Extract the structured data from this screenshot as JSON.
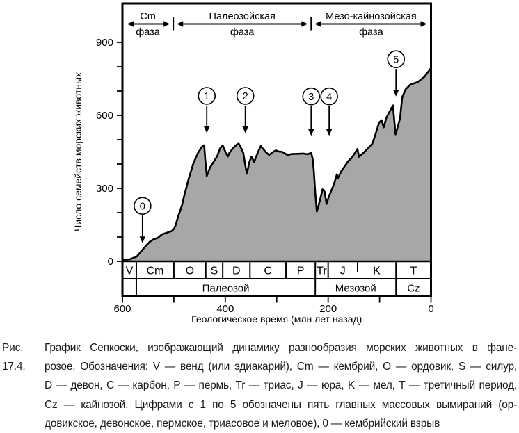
{
  "figure": {
    "caption_label": "Рис. 17.4.",
    "caption_lines": [
      "График Сепкоски, изображающий динамику разнообразия морских животных в фане-",
      "розое. Обозначения: V — венд (или эдиакарий), Cm — кембрий, O — ордовик, S — силур,",
      "D — девон, C — карбон, P — пермь, Tr — триас, J — юра, K — мел, T — третичный период,",
      "Cz — кайнозой. Цифрами с 1 по 5 обозначены пять главных массовых вымираний (ор-",
      "довикское, девонское, пермское, триасовое и меловое), 0 — кембрийский взрыв"
    ]
  },
  "chart_data": {
    "type": "area",
    "title": "",
    "xlabel": "Геологическое время (млн лет назад)",
    "ylabel": "Число семейств морских животных",
    "x_axis": {
      "max": 600,
      "min": 0,
      "reversed": true,
      "ticks": [
        600,
        500,
        400,
        300,
        200,
        100,
        0
      ],
      "labeled_ticks": [
        600,
        400,
        200,
        0
      ]
    },
    "y_axis": {
      "min": 0,
      "max": 900,
      "tick_step": 100,
      "labeled_ticks": [
        0,
        300,
        600,
        900
      ]
    },
    "grid": false,
    "fill_color": "#a7a7a7",
    "line_color": "#000000",
    "series": [
      {
        "name": "Число семейств морских животных",
        "x_unit": "млн лет назад",
        "points": [
          [
            600,
            5
          ],
          [
            585,
            9
          ],
          [
            572,
            20
          ],
          [
            564,
            40
          ],
          [
            554,
            65
          ],
          [
            547,
            80
          ],
          [
            539,
            91
          ],
          [
            531,
            97
          ],
          [
            523,
            111
          ],
          [
            513,
            118
          ],
          [
            504,
            125
          ],
          [
            500,
            133
          ],
          [
            497,
            146
          ],
          [
            491,
            189
          ],
          [
            484,
            231
          ],
          [
            480,
            269
          ],
          [
            475,
            308
          ],
          [
            471,
            341
          ],
          [
            466,
            374
          ],
          [
            462,
            403
          ],
          [
            457,
            427
          ],
          [
            453,
            446
          ],
          [
            446,
            469
          ],
          [
            441,
            477
          ],
          [
            439,
            420
          ],
          [
            436,
            351
          ],
          [
            430,
            384
          ],
          [
            423,
            408
          ],
          [
            416,
            431
          ],
          [
            410,
            465
          ],
          [
            405,
            477
          ],
          [
            399,
            446
          ],
          [
            395,
            431
          ],
          [
            392,
            446
          ],
          [
            385,
            465
          ],
          [
            378,
            479
          ],
          [
            374,
            484
          ],
          [
            369,
            465
          ],
          [
            365,
            446
          ],
          [
            361,
            393
          ],
          [
            358,
            360
          ],
          [
            353,
            410
          ],
          [
            349,
            431
          ],
          [
            344,
            408
          ],
          [
            337,
            446
          ],
          [
            331,
            474
          ],
          [
            322,
            451
          ],
          [
            315,
            437
          ],
          [
            308,
            448
          ],
          [
            302,
            456
          ],
          [
            295,
            451
          ],
          [
            290,
            451
          ],
          [
            283,
            442
          ],
          [
            279,
            437
          ],
          [
            272,
            441
          ],
          [
            260,
            442
          ],
          [
            248,
            443
          ],
          [
            240,
            440
          ],
          [
            233,
            446
          ],
          [
            230,
            420
          ],
          [
            228,
            375
          ],
          [
            225,
            280
          ],
          [
            222,
            205
          ],
          [
            218,
            235
          ],
          [
            214,
            268
          ],
          [
            211,
            296
          ],
          [
            207,
            287
          ],
          [
            203,
            236
          ],
          [
            198,
            270
          ],
          [
            192,
            300
          ],
          [
            187,
            328
          ],
          [
            183,
            358
          ],
          [
            181,
            342
          ],
          [
            175,
            368
          ],
          [
            168,
            390
          ],
          [
            161,
            412
          ],
          [
            154,
            426
          ],
          [
            143,
            462
          ],
          [
            140,
            430
          ],
          [
            131,
            447
          ],
          [
            122,
            466
          ],
          [
            114,
            484
          ],
          [
            108,
            522
          ],
          [
            101,
            570
          ],
          [
            96,
            580
          ],
          [
            92,
            551
          ],
          [
            87,
            589
          ],
          [
            80,
            618
          ],
          [
            74,
            641
          ],
          [
            69,
            522
          ],
          [
            65,
            551
          ],
          [
            60,
            589
          ],
          [
            56,
            675
          ],
          [
            49,
            708
          ],
          [
            40,
            727
          ],
          [
            26,
            737
          ],
          [
            13,
            758
          ],
          [
            0,
            795
          ]
        ]
      }
    ],
    "phases": [
      {
        "label": "Cm",
        "sub": "фаза",
        "from": 600,
        "to": 501
      },
      {
        "label": "Палеозойская",
        "sub": "фаза",
        "from": 501,
        "to": 233
      },
      {
        "label": "Мезо-кайнозойская",
        "sub": "фаза",
        "from": 233,
        "to": 0
      }
    ],
    "periods": [
      {
        "label": "V",
        "from": 600,
        "to": 573
      },
      {
        "label": "Cm",
        "from": 573,
        "to": 500
      },
      {
        "label": "O",
        "from": 500,
        "to": 438
      },
      {
        "label": "S",
        "from": 438,
        "to": 405
      },
      {
        "label": "D",
        "from": 405,
        "to": 352
      },
      {
        "label": "C",
        "from": 352,
        "to": 282
      },
      {
        "label": "P",
        "from": 282,
        "to": 225
      },
      {
        "label": "Tr",
        "from": 225,
        "to": 200
      },
      {
        "label": "J",
        "from": 200,
        "to": 143
      },
      {
        "label": "K",
        "from": 143,
        "to": 68,
        "short_divider": true
      },
      {
        "label": "T",
        "from": 68,
        "to": 0
      }
    ],
    "eras": [
      {
        "label": "",
        "from": 600,
        "to": 573
      },
      {
        "label": "Палеозой",
        "from": 573,
        "to": 225
      },
      {
        "label": "Мезозой",
        "from": 225,
        "to": 68
      },
      {
        "label": "Cz",
        "from": 68,
        "to": 0
      }
    ],
    "events": [
      {
        "label": "0",
        "t": 561,
        "circle_v": 228,
        "tip_v": 75
      },
      {
        "label": "1",
        "t": 436,
        "circle_v": 680,
        "tip_v": 527
      },
      {
        "label": "2",
        "t": 361,
        "circle_v": 680,
        "tip_v": 527
      },
      {
        "label": "3",
        "t": 233,
        "circle_v": 678,
        "tip_v": 516
      },
      {
        "label": "4",
        "t": 198,
        "circle_v": 678,
        "tip_v": 516
      },
      {
        "label": "5",
        "t": 68,
        "circle_v": 831,
        "tip_v": 678
      }
    ]
  }
}
